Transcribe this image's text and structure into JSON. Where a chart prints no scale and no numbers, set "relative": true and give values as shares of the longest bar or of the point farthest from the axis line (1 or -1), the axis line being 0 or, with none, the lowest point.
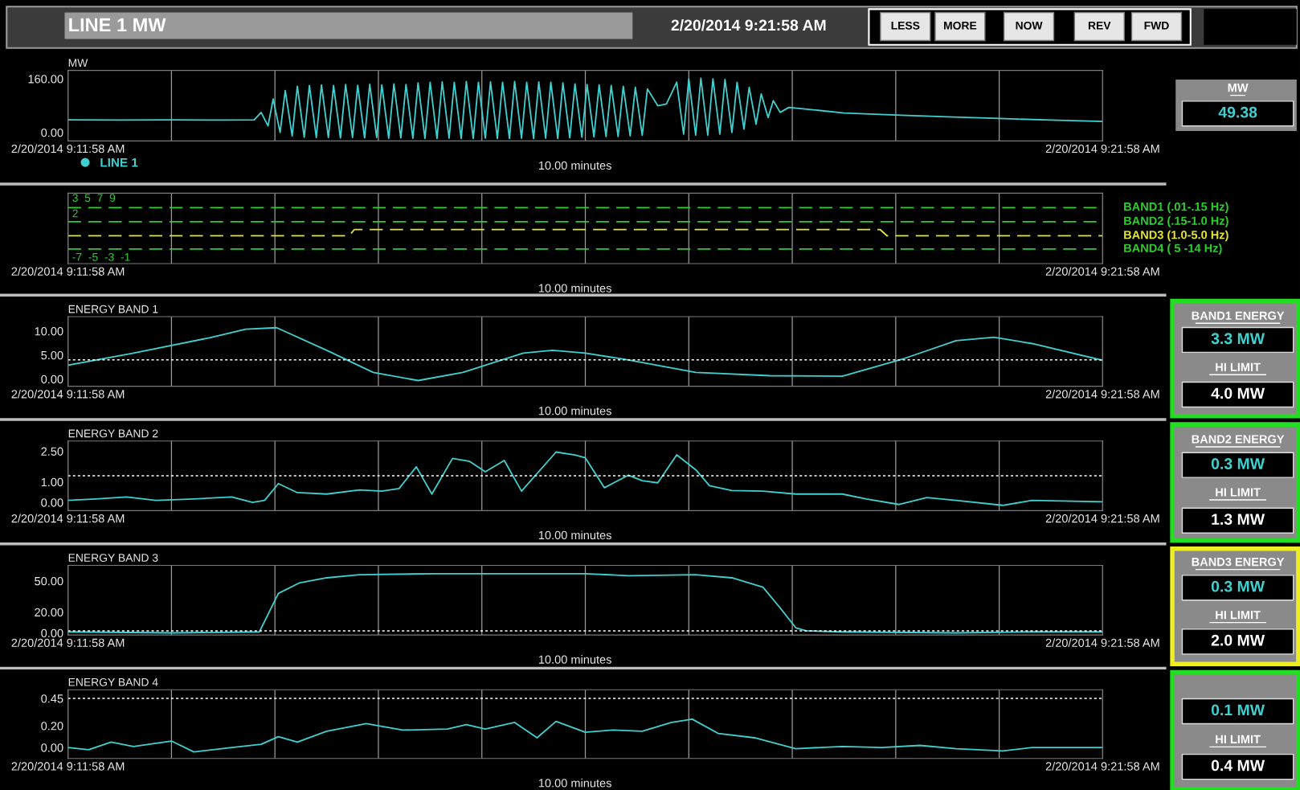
{
  "chart_data": [
    {
      "type": "other",
      "title": "LINE 1 MW",
      "annotations": [
        "2/20/2014 9:21:58 AM",
        "LESS",
        "MORE",
        "NOW",
        "REV",
        "FWD"
      ]
    },
    {
      "type": "line",
      "ylabel": "MW",
      "xlim": [
        "2014-02-20T09:11:58",
        "2014-02-20T09:21:58"
      ],
      "xticks": [
        {
          "value": "2014-02-20T09:11:58",
          "label": "2/20/2014 9:11:58 AM"
        },
        {
          "value": "2014-02-20T09:12:58",
          "label": null
        },
        {
          "value": "2014-02-20T09:13:58",
          "label": null
        },
        {
          "value": "2014-02-20T09:14:58",
          "label": null
        },
        {
          "value": "2014-02-20T09:15:58",
          "label": null
        },
        {
          "value": "2014-02-20T09:16:58",
          "label": null
        },
        {
          "value": "2014-02-20T09:17:58",
          "label": null
        },
        {
          "value": "2014-02-20T09:18:58",
          "label": null
        },
        {
          "value": "2014-02-20T09:19:58",
          "label": null
        },
        {
          "value": "2014-02-20T09:20:58",
          "label": null
        },
        {
          "value": "2014-02-20T09:21:58",
          "label": "2/20/2014 9:21:58 AM"
        }
      ],
      "ylim": [
        -25,
        185
      ],
      "yticks": [
        {
          "value": 0,
          "label": "0.00"
        },
        {
          "value": 160,
          "label": "160.00"
        }
      ],
      "grid": "x",
      "legend": "bottom left",
      "annotations": [
        "10.00 minutes"
      ],
      "series": [
        {
          "name": "LINE 1",
          "color": "#40d0d0",
          "x": [
            "2014-02-20T09:11:58",
            "2014-02-20T09:12:28",
            "2014-02-20T09:12:58",
            "2014-02-20T09:13:28",
            "2014-02-20T09:13:46",
            "2014-02-20T09:13:50",
            "2014-02-20T09:13:54",
            "2014-02-20T09:13:57",
            "2014-02-20T09:14:01",
            "2014-02-20T09:14:04",
            "2014-02-20T09:14:08",
            "2014-02-20T09:14:11",
            "2014-02-20T09:14:15",
            "2014-02-20T09:14:18",
            "2014-02-20T09:14:22",
            "2014-02-20T09:14:25",
            "2014-02-20T09:14:29",
            "2014-02-20T09:14:32",
            "2014-02-20T09:14:36",
            "2014-02-20T09:14:39",
            "2014-02-20T09:14:43",
            "2014-02-20T09:14:46",
            "2014-02-20T09:14:50",
            "2014-02-20T09:14:53",
            "2014-02-20T09:14:57",
            "2014-02-20T09:15:00",
            "2014-02-20T09:15:04",
            "2014-02-20T09:15:07",
            "2014-02-20T09:15:11",
            "2014-02-20T09:15:14",
            "2014-02-20T09:15:18",
            "2014-02-20T09:15:21",
            "2014-02-20T09:15:25",
            "2014-02-20T09:15:28",
            "2014-02-20T09:15:32",
            "2014-02-20T09:15:35",
            "2014-02-20T09:15:39",
            "2014-02-20T09:15:42",
            "2014-02-20T09:15:46",
            "2014-02-20T09:15:49",
            "2014-02-20T09:15:53",
            "2014-02-20T09:15:56",
            "2014-02-20T09:16:00",
            "2014-02-20T09:16:03",
            "2014-02-20T09:16:07",
            "2014-02-20T09:16:10",
            "2014-02-20T09:16:14",
            "2014-02-20T09:16:17",
            "2014-02-20T09:16:21",
            "2014-02-20T09:16:24",
            "2014-02-20T09:16:28",
            "2014-02-20T09:16:31",
            "2014-02-20T09:16:35",
            "2014-02-20T09:16:38",
            "2014-02-20T09:16:42",
            "2014-02-20T09:16:45",
            "2014-02-20T09:16:49",
            "2014-02-20T09:16:52",
            "2014-02-20T09:16:56",
            "2014-02-20T09:16:59",
            "2014-02-20T09:17:03",
            "2014-02-20T09:17:06",
            "2014-02-20T09:17:10",
            "2014-02-20T09:17:13",
            "2014-02-20T09:17:17",
            "2014-02-20T09:17:20",
            "2014-02-20T09:17:24",
            "2014-02-20T09:17:27",
            "2014-02-20T09:17:31",
            "2014-02-20T09:17:34",
            "2014-02-20T09:17:40",
            "2014-02-20T09:17:45",
            "2014-02-20T09:17:51",
            "2014-02-20T09:17:55",
            "2014-02-20T09:17:58",
            "2014-02-20T09:18:02",
            "2014-02-20T09:18:05",
            "2014-02-20T09:18:09",
            "2014-02-20T09:18:12",
            "2014-02-20T09:18:16",
            "2014-02-20T09:18:19",
            "2014-02-20T09:18:23",
            "2014-02-20T09:18:26",
            "2014-02-20T09:18:30",
            "2014-02-20T09:18:33",
            "2014-02-20T09:18:37",
            "2014-02-20T09:18:40",
            "2014-02-20T09:18:44",
            "2014-02-20T09:18:47",
            "2014-02-20T09:18:51",
            "2014-02-20T09:18:56",
            "2014-02-20T09:19:10",
            "2014-02-20T09:19:28",
            "2014-02-20T09:19:58",
            "2014-02-20T09:20:28",
            "2014-02-20T09:20:58",
            "2014-02-20T09:21:28",
            "2014-02-20T09:21:58"
          ],
          "values": [
            38,
            37,
            38,
            37,
            38,
            60,
            20,
            100,
            0,
            125,
            -10,
            138,
            -14,
            140,
            -15,
            142,
            -15,
            140,
            -16,
            143,
            -15,
            141,
            -16,
            144,
            -15,
            142,
            -17,
            145,
            -16,
            143,
            -17,
            148,
            -18,
            150,
            -18,
            151,
            -17,
            150,
            -18,
            152,
            -18,
            150,
            -17,
            151,
            -18,
            150,
            -18,
            152,
            -17,
            150,
            -18,
            151,
            -17,
            150,
            -18,
            148,
            -16,
            145,
            -14,
            143,
            -13,
            142,
            -12,
            140,
            -12,
            138,
            -10,
            135,
            -8,
            130,
            80,
            85,
            150,
            -5,
            160,
            -8,
            162,
            -8,
            160,
            -5,
            158,
            0,
            150,
            10,
            135,
            25,
            115,
            45,
            95,
            60,
            75,
            68,
            58,
            52,
            47,
            42,
            37,
            33
          ]
        }
      ]
    },
    {
      "type": "line",
      "relative": true,
      "line_style": "dashed",
      "xlim": [
        "2014-02-20T09:11:58",
        "2014-02-20T09:21:58"
      ],
      "xticks": [
        {
          "value": "2014-02-20T09:11:58",
          "label": "2/20/2014 9:11:58 AM"
        },
        {
          "value": "2014-02-20T09:12:58",
          "label": null
        },
        {
          "value": "2014-02-20T09:13:58",
          "label": null
        },
        {
          "value": "2014-02-20T09:14:58",
          "label": null
        },
        {
          "value": "2014-02-20T09:15:58",
          "label": null
        },
        {
          "value": "2014-02-20T09:16:58",
          "label": null
        },
        {
          "value": "2014-02-20T09:17:58",
          "label": null
        },
        {
          "value": "2014-02-20T09:18:58",
          "label": null
        },
        {
          "value": "2014-02-20T09:19:58",
          "label": null
        },
        {
          "value": "2014-02-20T09:20:58",
          "label": null
        },
        {
          "value": "2014-02-20T09:21:58",
          "label": "2/20/2014 9:21:58 AM"
        }
      ],
      "tick_labels": "x",
      "grid": "x",
      "annotations": [
        "3  5  7  9",
        "2",
        "-7  -5  -3  -1",
        "10.00 minutes"
      ],
      "series": [
        {
          "name": "BAND1 (.01-.15 Hz)",
          "color": "#2ecc2e",
          "x": [
            "2014-02-20T09:11:58",
            "2014-02-20T09:21:58"
          ],
          "values": [
            1,
            1
          ]
        },
        {
          "name": "BAND2 (.15-1.0 Hz)",
          "color": "#2ecc2e",
          "x": [
            "2014-02-20T09:11:58",
            "2014-02-20T09:21:58"
          ],
          "values": [
            0.66,
            0.66
          ]
        },
        {
          "name": "BAND3 (1.0-5.0 Hz)",
          "color": "#e6e62e",
          "x": [
            "2014-02-20T09:11:58",
            "2014-02-20T09:14:41",
            "2014-02-20T09:14:44",
            "2014-02-20T09:19:49",
            "2014-02-20T09:19:53",
            "2014-02-20T09:21:58"
          ],
          "values": [
            0.32,
            0.32,
            0.47,
            0.47,
            0.32,
            0.32
          ]
        },
        {
          "name": "BAND4 ( 5 -14 Hz)",
          "color": "#2ecc2e",
          "x": [
            "2014-02-20T09:11:58",
            "2014-02-20T09:21:58"
          ],
          "values": [
            0,
            0
          ]
        }
      ]
    },
    {
      "type": "line",
      "title": "ENERGY BAND 1",
      "xlim": [
        "2014-02-20T09:11:58",
        "2014-02-20T09:21:58"
      ],
      "xticks": [
        {
          "value": "2014-02-20T09:11:58",
          "label": "2/20/2014 9:11:58 AM"
        },
        {
          "value": "2014-02-20T09:12:58",
          "label": null
        },
        {
          "value": "2014-02-20T09:13:58",
          "label": null
        },
        {
          "value": "2014-02-20T09:14:58",
          "label": null
        },
        {
          "value": "2014-02-20T09:15:58",
          "label": null
        },
        {
          "value": "2014-02-20T09:16:58",
          "label": null
        },
        {
          "value": "2014-02-20T09:17:58",
          "label": null
        },
        {
          "value": "2014-02-20T09:18:58",
          "label": null
        },
        {
          "value": "2014-02-20T09:19:58",
          "label": null
        },
        {
          "value": "2014-02-20T09:20:58",
          "label": null
        },
        {
          "value": "2014-02-20T09:21:58",
          "label": "2/20/2014 9:21:58 AM"
        }
      ],
      "ylim": [
        -1.5,
        13
      ],
      "yticks": [
        {
          "value": 0,
          "label": "0.00"
        },
        {
          "value": 5,
          "label": "5.00"
        },
        {
          "value": 10,
          "label": "10.00"
        }
      ],
      "grid": "x",
      "ref_lines": [
        {
          "axis": "y",
          "value": 4.0,
          "color": "#ffffff",
          "line_style": "dotted"
        }
      ],
      "annotations": [
        "10.00 minutes"
      ],
      "series": [
        {
          "color": "#40d0d0",
          "x": [
            "2014-02-20T09:11:58",
            "2014-02-20T09:12:36",
            "2014-02-20T09:13:20",
            "2014-02-20T09:13:41",
            "2014-02-20T09:13:59",
            "2014-02-20T09:14:28",
            "2014-02-20T09:14:55",
            "2014-02-20T09:15:21",
            "2014-02-20T09:15:47",
            "2014-02-20T09:16:22",
            "2014-02-20T09:16:39",
            "2014-02-20T09:16:58",
            "2014-02-20T09:17:21",
            "2014-02-20T09:18:02",
            "2014-02-20T09:18:45",
            "2014-02-20T09:19:27",
            "2014-02-20T09:20:03",
            "2014-02-20T09:20:33",
            "2014-02-20T09:20:55",
            "2014-02-20T09:21:17",
            "2014-02-20T09:21:58"
          ],
          "values": [
            2.9,
            5.4,
            8.6,
            10.4,
            10.7,
            6.0,
            1.4,
            -0.3,
            1.4,
            5.4,
            6.0,
            5.4,
            4.1,
            1.4,
            0.7,
            0.6,
            4.3,
            8.0,
            8.7,
            7.4,
            3.9
          ]
        }
      ]
    },
    {
      "type": "line",
      "title": "ENERGY BAND 2",
      "xlim": [
        "2014-02-20T09:11:58",
        "2014-02-20T09:21:58"
      ],
      "xticks": [
        {
          "value": "2014-02-20T09:11:58",
          "label": "2/20/2014 9:11:58 AM"
        },
        {
          "value": "2014-02-20T09:12:58",
          "label": null
        },
        {
          "value": "2014-02-20T09:13:58",
          "label": null
        },
        {
          "value": "2014-02-20T09:14:58",
          "label": null
        },
        {
          "value": "2014-02-20T09:15:58",
          "label": null
        },
        {
          "value": "2014-02-20T09:16:58",
          "label": null
        },
        {
          "value": "2014-02-20T09:17:58",
          "label": null
        },
        {
          "value": "2014-02-20T09:18:58",
          "label": null
        },
        {
          "value": "2014-02-20T09:19:58",
          "label": null
        },
        {
          "value": "2014-02-20T09:20:58",
          "label": null
        },
        {
          "value": "2014-02-20T09:21:58",
          "label": "2/20/2014 9:21:58 AM"
        }
      ],
      "ylim": [
        -0.4,
        3
      ],
      "yticks": [
        {
          "value": 0,
          "label": "0.00"
        },
        {
          "value": 1,
          "label": "1.00"
        },
        {
          "value": 2.5,
          "label": "2.50"
        }
      ],
      "grid": "x",
      "ref_lines": [
        {
          "axis": "y",
          "value": 1.3,
          "color": "#ffffff",
          "line_style": "dotted"
        }
      ],
      "annotations": [
        "10.00 minutes"
      ],
      "series": [
        {
          "color": "#40d0d0",
          "x": [
            "2014-02-20T09:11:58",
            "2014-02-20T09:12:14",
            "2014-02-20T09:12:32",
            "2014-02-20T09:12:49",
            "2014-02-20T09:13:11",
            "2014-02-20T09:13:33",
            "2014-02-20T09:13:45",
            "2014-02-20T09:13:52",
            "2014-02-20T09:14:00",
            "2014-02-20T09:14:11",
            "2014-02-20T09:14:28",
            "2014-02-20T09:14:47",
            "2014-02-20T09:15:00",
            "2014-02-20T09:15:10",
            "2014-02-20T09:15:20",
            "2014-02-20T09:15:29",
            "2014-02-20T09:15:41",
            "2014-02-20T09:15:51",
            "2014-02-20T09:16:00",
            "2014-02-20T09:16:11",
            "2014-02-20T09:16:21",
            "2014-02-20T09:16:41",
            "2014-02-20T09:16:52",
            "2014-02-20T09:16:58",
            "2014-02-20T09:17:09",
            "2014-02-20T09:17:23",
            "2014-02-20T09:17:31",
            "2014-02-20T09:17:40",
            "2014-02-20T09:17:51",
            "2014-02-20T09:18:02",
            "2014-02-20T09:18:10",
            "2014-02-20T09:18:23",
            "2014-02-20T09:18:41",
            "2014-02-20T09:19:00",
            "2014-02-20T09:19:27",
            "2014-02-20T09:19:41",
            "2014-02-20T09:20:00",
            "2014-02-20T09:20:16",
            "2014-02-20T09:20:33",
            "2014-02-20T09:21:00",
            "2014-02-20T09:21:17",
            "2014-02-20T09:21:58"
          ],
          "values": [
            0.1,
            0.17,
            0.27,
            0.1,
            0.17,
            0.27,
            0,
            0.1,
            0.92,
            0.48,
            0.41,
            0.61,
            0.55,
            0.68,
            1.74,
            0.41,
            2.15,
            2.0,
            1.5,
            2.05,
            0.55,
            2.46,
            2.32,
            2.18,
            0.72,
            1.33,
            1.06,
            0.96,
            2.32,
            1.6,
            0.82,
            0.58,
            0.55,
            0.41,
            0.41,
            0.17,
            -0.1,
            0.24,
            0.1,
            -0.14,
            0.1,
            0.03
          ]
        }
      ]
    },
    {
      "type": "line",
      "title": "ENERGY BAND 3",
      "xlim": [
        "2014-02-20T09:11:58",
        "2014-02-20T09:21:58"
      ],
      "xticks": [
        {
          "value": "2014-02-20T09:11:58",
          "label": "2/20/2014 9:11:58 AM"
        },
        {
          "value": "2014-02-20T09:12:58",
          "label": null
        },
        {
          "value": "2014-02-20T09:13:58",
          "label": null
        },
        {
          "value": "2014-02-20T09:14:58",
          "label": null
        },
        {
          "value": "2014-02-20T09:15:58",
          "label": null
        },
        {
          "value": "2014-02-20T09:16:58",
          "label": null
        },
        {
          "value": "2014-02-20T09:17:58",
          "label": null
        },
        {
          "value": "2014-02-20T09:18:58",
          "label": null
        },
        {
          "value": "2014-02-20T09:19:58",
          "label": null
        },
        {
          "value": "2014-02-20T09:20:58",
          "label": null
        },
        {
          "value": "2014-02-20T09:21:58",
          "label": "2/20/2014 9:21:58 AM"
        }
      ],
      "ylim": [
        -2,
        65
      ],
      "yticks": [
        {
          "value": 0,
          "label": "0.00"
        },
        {
          "value": 20,
          "label": "20.00"
        },
        {
          "value": 50,
          "label": "50.00"
        }
      ],
      "grid": "x",
      "ref_lines": [
        {
          "axis": "y",
          "value": 2.0,
          "color": "#ffffff",
          "line_style": "dotted"
        }
      ],
      "annotations": [
        "10.00 minutes"
      ],
      "series": [
        {
          "color": "#40d0d0",
          "x": [
            "2014-02-20T09:11:58",
            "2014-02-20T09:12:58",
            "2014-02-20T09:13:49",
            "2014-02-20T09:14:00",
            "2014-02-20T09:14:12",
            "2014-02-20T09:14:28",
            "2014-02-20T09:14:47",
            "2014-02-20T09:15:30",
            "2014-02-20T09:16:13",
            "2014-02-20T09:16:58",
            "2014-02-20T09:17:23",
            "2014-02-20T09:18:02",
            "2014-02-20T09:18:23",
            "2014-02-20T09:18:41",
            "2014-02-20T09:18:51",
            "2014-02-20T09:19:00",
            "2014-02-20T09:19:06",
            "2014-02-20T09:19:27",
            "2014-02-20T09:20:33",
            "2014-02-20T09:21:17",
            "2014-02-20T09:21:58"
          ],
          "values": [
            1,
            0,
            1,
            38,
            48,
            53,
            56,
            57,
            57,
            57,
            55,
            56,
            53,
            44,
            24,
            5,
            2,
            1,
            0,
            1,
            1
          ]
        }
      ]
    },
    {
      "type": "line",
      "title": "ENERGY BAND 4",
      "xlim": [
        "2014-02-20T09:11:58",
        "2014-02-20T09:21:58"
      ],
      "xticks": [
        {
          "value": "2014-02-20T09:11:58",
          "label": "2/20/2014 9:11:58 AM"
        },
        {
          "value": "2014-02-20T09:12:58",
          "label": null
        },
        {
          "value": "2014-02-20T09:13:58",
          "label": null
        },
        {
          "value": "2014-02-20T09:14:58",
          "label": null
        },
        {
          "value": "2014-02-20T09:15:58",
          "label": null
        },
        {
          "value": "2014-02-20T09:16:58",
          "label": null
        },
        {
          "value": "2014-02-20T09:17:58",
          "label": null
        },
        {
          "value": "2014-02-20T09:18:58",
          "label": null
        },
        {
          "value": "2014-02-20T09:19:58",
          "label": null
        },
        {
          "value": "2014-02-20T09:20:58",
          "label": null
        },
        {
          "value": "2014-02-20T09:21:58",
          "label": "2/20/2014 9:21:58 AM"
        }
      ],
      "ylim": [
        -0.1,
        0.53
      ],
      "yticks": [
        {
          "value": 0,
          "label": "0.00"
        },
        {
          "value": 0.2,
          "label": "0.20"
        },
        {
          "value": 0.45,
          "label": "0.45"
        }
      ],
      "grid": "x",
      "ref_lines": [
        {
          "axis": "y",
          "value": 0.45,
          "color": "#ffffff",
          "line_style": "dotted"
        }
      ],
      "annotations": [
        "10.00 minutes"
      ],
      "series": [
        {
          "color": "#40d0d0",
          "x": [
            "2014-02-20T09:11:58",
            "2014-02-20T09:12:10",
            "2014-02-20T09:12:23",
            "2014-02-20T09:12:36",
            "2014-02-20T09:12:58",
            "2014-02-20T09:13:11",
            "2014-02-20T09:13:33",
            "2014-02-20T09:13:50",
            "2014-02-20T09:14:00",
            "2014-02-20T09:14:11",
            "2014-02-20T09:14:28",
            "2014-02-20T09:14:51",
            "2014-02-20T09:15:12",
            "2014-02-20T09:15:38",
            "2014-02-20T09:15:49",
            "2014-02-20T09:16:00",
            "2014-02-20T09:16:17",
            "2014-02-20T09:16:30",
            "2014-02-20T09:16:41",
            "2014-02-20T09:16:58",
            "2014-02-20T09:17:14",
            "2014-02-20T09:17:31",
            "2014-02-20T09:17:48",
            "2014-02-20T09:18:00",
            "2014-02-20T09:18:15",
            "2014-02-20T09:18:36",
            "2014-02-20T09:19:00",
            "2014-02-20T09:19:27",
            "2014-02-20T09:19:50",
            "2014-02-20T09:20:12",
            "2014-02-20T09:20:33",
            "2014-02-20T09:21:00",
            "2014-02-20T09:21:17",
            "2014-02-20T09:21:58"
          ],
          "values": [
            0,
            -0.02,
            0.05,
            0.01,
            0.06,
            -0.04,
            0,
            0.03,
            0.1,
            0.05,
            0.15,
            0.22,
            0.16,
            0.17,
            0.21,
            0.17,
            0.23,
            0.09,
            0.24,
            0.14,
            0.16,
            0.15,
            0.23,
            0.26,
            0.13,
            0.09,
            -0.01,
            0.01,
            0,
            0.02,
            -0.01,
            -0.03,
            0,
            0
          ]
        }
      ]
    },
    {
      "type": "other",
      "annotations": [
        "MW",
        "49.38",
        "BAND1 ENERGY",
        "3.3 MW",
        "HI LIMIT",
        "4.0 MW",
        "BAND2 ENERGY",
        "0.3 MW",
        "HI LIMIT",
        "1.3 MW",
        "BAND3 ENERGY",
        "0.3 MW",
        "HI LIMIT",
        "2.0 MW",
        "0.1 MW",
        "HI LIMIT",
        "0.4 MW"
      ]
    }
  ]
}
